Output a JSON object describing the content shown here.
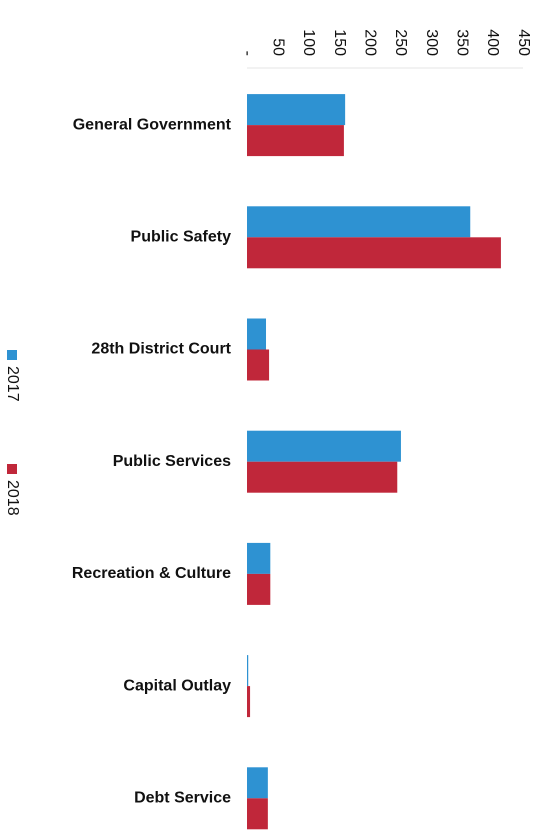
{
  "chart_data": {
    "type": "barh",
    "categories": [
      "General Government",
      "Public Safety",
      "28th District Court",
      "Public Services",
      "Recreation & Culture",
      "Capital Outlay",
      "Debt Service"
    ],
    "series": [
      {
        "name": "2017",
        "color": "#2e92d2",
        "values": [
          160,
          364,
          31,
          251,
          38,
          2,
          34
        ]
      },
      {
        "name": "2018",
        "color": "#c0273a",
        "values": [
          158,
          414,
          36,
          245,
          38,
          5,
          34
        ]
      }
    ],
    "xlim": [
      0,
      450
    ],
    "xticks": [
      {
        "value": 0,
        "label": "-"
      },
      50,
      100,
      150,
      200,
      250,
      300,
      350,
      400,
      450
    ],
    "legend": "left"
  }
}
